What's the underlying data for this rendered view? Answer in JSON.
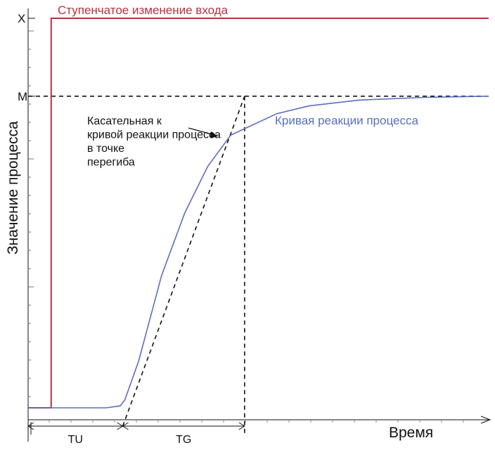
{
  "chart_data": {
    "type": "line",
    "title": "",
    "xlabel": "Время",
    "ylabel": "Значение процесса",
    "y_tick_labels": [
      {
        "label": "X",
        "y": 100
      },
      {
        "label": "M",
        "y": 80
      }
    ],
    "xlim": [
      0,
      100
    ],
    "ylim": [
      0,
      100
    ],
    "series": [
      {
        "name": "Ступенчатое изменение входа",
        "color": "#b5333f",
        "points": [
          [
            0,
            0
          ],
          [
            5,
            0
          ],
          [
            5,
            100
          ],
          [
            100,
            100
          ]
        ]
      },
      {
        "name": "Кривая реакции процесса",
        "color": "#5a6ec0",
        "points": [
          [
            0,
            0
          ],
          [
            17,
            0
          ],
          [
            20,
            0.5
          ],
          [
            21,
            2
          ],
          [
            24,
            12
          ],
          [
            29,
            34
          ],
          [
            34,
            50
          ],
          [
            39,
            62
          ],
          [
            44,
            70
          ],
          [
            54,
            75.5
          ],
          [
            61,
            77.5
          ],
          [
            72,
            79
          ],
          [
            86,
            79.7
          ],
          [
            100,
            80
          ]
        ]
      }
    ],
    "tangent": {
      "label": "Касательная к кривой реакции процесса в точке перегиба",
      "points": [
        [
          21,
          0
        ],
        [
          47,
          80
        ]
      ]
    },
    "reference_lines": {
      "m_level": 80,
      "tg_end_x": 47
    },
    "intervals": [
      {
        "label": "TU",
        "from": 0,
        "to": 21
      },
      {
        "label": "TG",
        "from": 21,
        "to": 47
      }
    ]
  }
}
